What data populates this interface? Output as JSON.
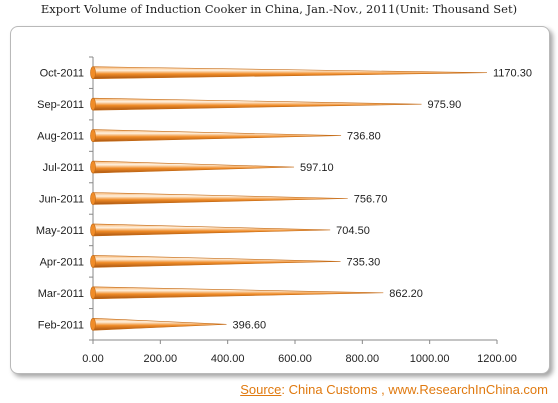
{
  "chart_data": {
    "type": "bar",
    "orientation": "horizontal",
    "title": "Export Volume of Induction Cooker in China, Jan.-Nov., 2011(Unit: Thousand Set)",
    "categories": [
      "Feb-2011",
      "Mar-2011",
      "Apr-2011",
      "May-2011",
      "Jun-2011",
      "Jul-2011",
      "Aug-2011",
      "Sep-2011",
      "Oct-2011"
    ],
    "values": [
      396.6,
      862.2,
      735.3,
      704.5,
      756.7,
      597.1,
      736.8,
      975.9,
      1170.3
    ],
    "value_labels": [
      "396.60",
      "862.20",
      "735.30",
      "704.50",
      "756.70",
      "597.10",
      "736.80",
      "975.90",
      "1170.30"
    ],
    "xlim": [
      0,
      1200
    ],
    "xticks": [
      0,
      200,
      400,
      600,
      800,
      1000,
      1200
    ],
    "xtick_labels": [
      "0.00",
      "200.00",
      "400.00",
      "600.00",
      "800.00",
      "1000.00",
      "1200.00"
    ],
    "bar_color": "#f08c28",
    "grid": false,
    "legend": "none"
  },
  "source": {
    "label": "Source",
    "text": ": China Customs , www.ResearchInChina.com",
    "color": "#e07a10"
  }
}
